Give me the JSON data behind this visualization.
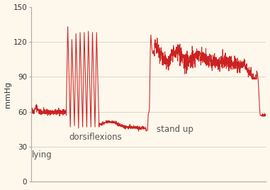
{
  "ylabel": "mmHg",
  "ylim": [
    0,
    150
  ],
  "yticks": [
    0,
    30,
    60,
    90,
    120,
    150
  ],
  "background_color": "#fef8ec",
  "line_color": "#cc2222",
  "label_lying": "lying",
  "label_dorsiflexions": "dorsiflexions",
  "label_standup": "stand up",
  "label_fontsize": 8.5,
  "label_color": "#555555"
}
